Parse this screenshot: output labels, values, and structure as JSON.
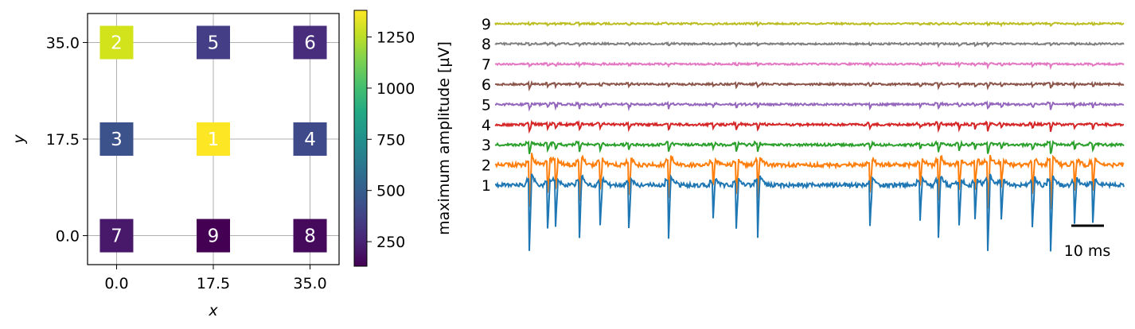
{
  "chart_data": [
    {
      "type": "heatmap",
      "xlabel": "x",
      "ylabel": "y",
      "xlim": [
        -5.25,
        40.25
      ],
      "ylim": [
        -5.25,
        40.25
      ],
      "xticks": [
        "0.0",
        "17.5",
        "35.0"
      ],
      "yticks": [
        "0.0",
        "17.5",
        "35.0"
      ],
      "grid": true,
      "colormap": "viridis",
      "colorbar": {
        "label": "maximum amplitude [µV]",
        "range": [
          130,
          1380
        ],
        "ticks": [
          "250",
          "500",
          "750",
          "1000",
          "1250"
        ]
      },
      "electrodes": [
        {
          "label": "2",
          "x": 0.0,
          "y": 35.0,
          "amplitude": 1290,
          "color": "#d2e21b"
        },
        {
          "label": "5",
          "x": 17.5,
          "y": 35.0,
          "amplitude": 300,
          "color": "#433e85"
        },
        {
          "label": "6",
          "x": 35.0,
          "y": 35.0,
          "amplitude": 230,
          "color": "#472d7b"
        },
        {
          "label": "3",
          "x": 0.0,
          "y": 17.5,
          "amplitude": 520,
          "color": "#3b528b"
        },
        {
          "label": "1",
          "x": 17.5,
          "y": 17.5,
          "amplitude": 1380,
          "color": "#fde725"
        },
        {
          "label": "4",
          "x": 35.0,
          "y": 17.5,
          "amplitude": 440,
          "color": "#3e4a89"
        },
        {
          "label": "7",
          "x": 0.0,
          "y": 0.0,
          "amplitude": 180,
          "color": "#48186a"
        },
        {
          "label": "9",
          "x": 17.5,
          "y": 0.0,
          "amplitude": 130,
          "color": "#440154"
        },
        {
          "label": "8",
          "x": 35.0,
          "y": 0.0,
          "amplitude": 150,
          "color": "#450a5c"
        }
      ]
    },
    {
      "type": "line",
      "traces": [
        {
          "label": "1",
          "color": "#1f77b4",
          "spike_amplitude": 1.0
        },
        {
          "label": "2",
          "color": "#ff7f0e",
          "spike_amplitude": 0.95
        },
        {
          "label": "3",
          "color": "#2ca02c",
          "spike_amplitude": 0.4
        },
        {
          "label": "4",
          "color": "#d62728",
          "spike_amplitude": 0.32
        },
        {
          "label": "5",
          "color": "#9467bd",
          "spike_amplitude": 0.22
        },
        {
          "label": "6",
          "color": "#8c564b",
          "spike_amplitude": 0.17
        },
        {
          "label": "7",
          "color": "#e377c2",
          "spike_amplitude": 0.12
        },
        {
          "label": "8",
          "color": "#7f7f7f",
          "spike_amplitude": 0.1
        },
        {
          "label": "9",
          "color": "#bcbd22",
          "spike_amplitude": 0.08
        }
      ],
      "spike_times": [
        0.065,
        0.1,
        0.115,
        0.16,
        0.2,
        0.255,
        0.33,
        0.415,
        0.46,
        0.5,
        0.715,
        0.81,
        0.845,
        0.885,
        0.915,
        0.94,
        0.965,
        1.025,
        1.06,
        1.105,
        1.14
      ],
      "scalebar": {
        "label": "10 ms"
      }
    }
  ]
}
